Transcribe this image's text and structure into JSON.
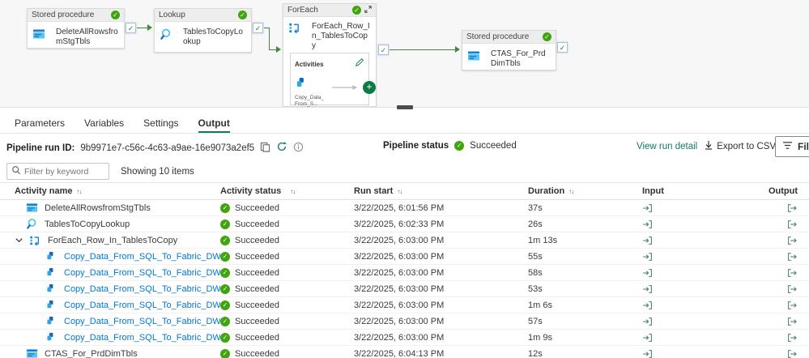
{
  "canvas": {
    "nodes": [
      {
        "type": "Stored procedure",
        "name": "DeleteAllRowsfromStgTbls"
      },
      {
        "type": "Lookup",
        "name": "TablesToCopyLookup"
      },
      {
        "type": "ForEach",
        "name": "ForEach_Row_In_TablesToCopy",
        "activities_label": "Activities",
        "inner_activity_label": "Copy_Data_From_S..."
      },
      {
        "type": "Stored procedure",
        "name": "CTAS_For_PrdDimTbls"
      }
    ]
  },
  "tabs": [
    {
      "label": "Parameters"
    },
    {
      "label": "Variables"
    },
    {
      "label": "Settings"
    },
    {
      "label": "Output"
    }
  ],
  "run_info": {
    "run_id_label": "Pipeline run ID:",
    "run_id": "9b9971e7-c56c-4c63-a9ae-16e9073a2ef5",
    "status_label": "Pipeline status",
    "status_value": "Succeeded"
  },
  "toolbar": {
    "view_run_detail": "View run detail",
    "export_csv": "Export to CSV",
    "filter": "Filter"
  },
  "filter_row": {
    "placeholder": "Filter by keyword",
    "showing": "Showing 10 items"
  },
  "table": {
    "headers": {
      "name": "Activity name",
      "status": "Activity status",
      "run_start": "Run start",
      "duration": "Duration",
      "input": "Input",
      "output": "Output"
    },
    "rows": [
      {
        "name": "DeleteAllRowsfromStgTbls",
        "icon": "storedproc",
        "status": "Succeeded",
        "run_start": "3/22/2025, 6:01:56 PM",
        "duration": "37s",
        "indent": 0,
        "link": false,
        "expander": false
      },
      {
        "name": "TablesToCopyLookup",
        "icon": "lookup",
        "status": "Succeeded",
        "run_start": "3/22/2025, 6:02:33 PM",
        "duration": "26s",
        "indent": 0,
        "link": false,
        "expander": false
      },
      {
        "name": "ForEach_Row_In_TablesToCopy",
        "icon": "foreach",
        "status": "Succeeded",
        "run_start": "3/22/2025, 6:03:00 PM",
        "duration": "1m 13s",
        "indent": 0,
        "link": false,
        "expander": true
      },
      {
        "name": "Copy_Data_From_SQL_To_Fabric_DW",
        "icon": "copydata",
        "status": "Succeeded",
        "run_start": "3/22/2025, 6:03:00 PM",
        "duration": "55s",
        "indent": 1,
        "link": true,
        "expander": false
      },
      {
        "name": "Copy_Data_From_SQL_To_Fabric_DW",
        "icon": "copydata",
        "status": "Succeeded",
        "run_start": "3/22/2025, 6:03:00 PM",
        "duration": "58s",
        "indent": 1,
        "link": true,
        "expander": false
      },
      {
        "name": "Copy_Data_From_SQL_To_Fabric_DW",
        "icon": "copydata",
        "status": "Succeeded",
        "run_start": "3/22/2025, 6:03:00 PM",
        "duration": "53s",
        "indent": 1,
        "link": true,
        "expander": false
      },
      {
        "name": "Copy_Data_From_SQL_To_Fabric_DW",
        "icon": "copydata",
        "status": "Succeeded",
        "run_start": "3/22/2025, 6:03:00 PM",
        "duration": "1m 6s",
        "indent": 1,
        "link": true,
        "expander": false
      },
      {
        "name": "Copy_Data_From_SQL_To_Fabric_DW",
        "icon": "copydata",
        "status": "Succeeded",
        "run_start": "3/22/2025, 6:03:00 PM",
        "duration": "57s",
        "indent": 1,
        "link": true,
        "expander": false
      },
      {
        "name": "Copy_Data_From_SQL_To_Fabric_DW",
        "icon": "copydata",
        "status": "Succeeded",
        "run_start": "3/22/2025, 6:03:00 PM",
        "duration": "1m 9s",
        "indent": 1,
        "link": true,
        "expander": false
      },
      {
        "name": "CTAS_For_PrdDimTbls",
        "icon": "storedproc",
        "status": "Succeeded",
        "run_start": "3/22/2025, 6:04:13 PM",
        "duration": "12s",
        "indent": 0,
        "link": false,
        "expander": false
      }
    ]
  },
  "colors": {
    "accent_teal": "#117865",
    "link_blue": "#0078d4",
    "success_green": "#3fa40e",
    "connector_green": "#3e8a3e"
  }
}
